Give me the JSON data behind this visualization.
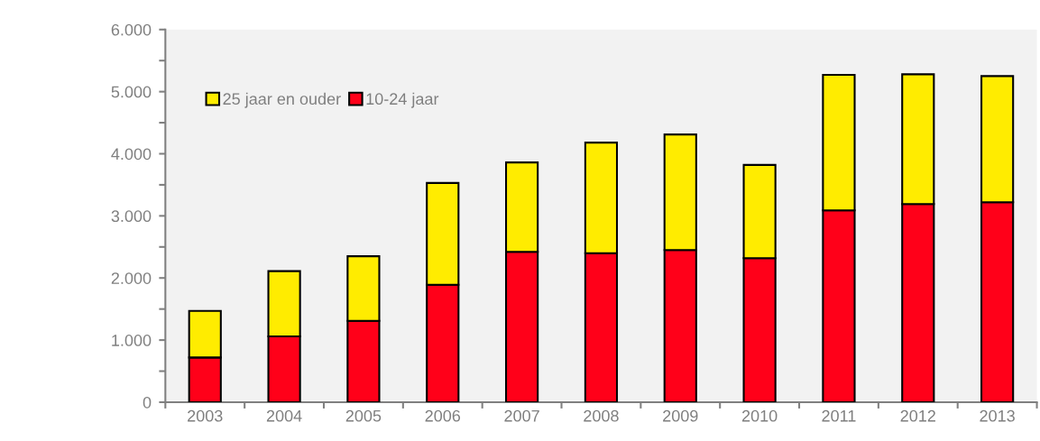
{
  "chart_data": {
    "type": "bar",
    "stacked": true,
    "categories": [
      "2003",
      "2004",
      "2005",
      "2006",
      "2007",
      "2008",
      "2009",
      "2010",
      "2011",
      "2012",
      "2013"
    ],
    "series": [
      {
        "name": "10-24 jaar",
        "color": "#ff0019",
        "values": [
          720,
          1060,
          1310,
          1890,
          2420,
          2400,
          2450,
          2320,
          3090,
          3190,
          3220
        ]
      },
      {
        "name": "25 jaar en ouder",
        "color": "#ffec00",
        "values": [
          750,
          1050,
          1040,
          1640,
          1440,
          1780,
          1860,
          1500,
          2180,
          2090,
          2030
        ]
      }
    ],
    "ylim": [
      0,
      6000
    ],
    "yticks": [
      {
        "value": 0,
        "label": "0"
      },
      {
        "value": 500,
        "label": null
      },
      {
        "value": 1000,
        "label": "1.000"
      },
      {
        "value": 1500,
        "label": null
      },
      {
        "value": 2000,
        "label": "2.000"
      },
      {
        "value": 2500,
        "label": null
      },
      {
        "value": 3000,
        "label": "3.000"
      },
      {
        "value": 3500,
        "label": null
      },
      {
        "value": 4000,
        "label": "4.000"
      },
      {
        "value": 4500,
        "label": null
      },
      {
        "value": 5000,
        "label": "5.000"
      },
      {
        "value": 5500,
        "label": null
      },
      {
        "value": 6000,
        "label": "6.000"
      }
    ],
    "legend": "top left",
    "grid": false
  }
}
